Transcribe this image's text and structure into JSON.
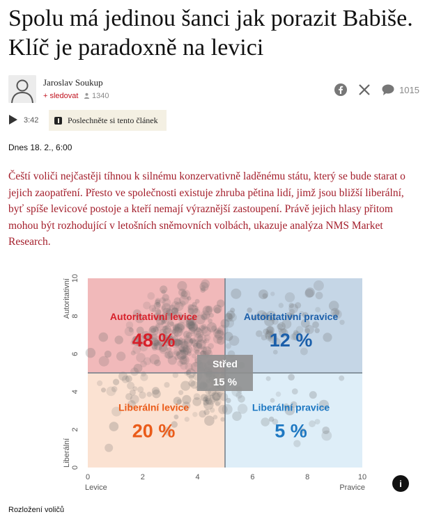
{
  "article": {
    "title": "Spolu má jedinou šanci jak porazit Babiše. Klíč je paradoxně na levici",
    "author": "Jaroslav Soukup",
    "follow_label": "+ sledovat",
    "followers": "1340",
    "comments_count": "1015",
    "audio_duration": "3:42",
    "listen_label": "Poslechněte si tento článek",
    "date": "Dnes 18. 2., 6:00",
    "perex": "Čeští voliči nejčastěji tíhnou k silnému konzervativně laděnému státu, který se bude starat o jejich zaopatření. Přesto ve společnosti existuje zhruba pětina lidí, jimž jsou bližší liberální, byť spíše levicové postoje a kteří nemají výraznější zastoupení. Právě jejich hlasy přitom mohou být rozhodující v letošních sněmovních volbách, ukazuje analýza NMS Market Research.",
    "info_label": "i",
    "caption": "Rozložení voličů"
  },
  "icons": {
    "avatar": "user-silhouette-icon",
    "facebook": "facebook-icon",
    "x": "x-icon",
    "comments": "comment-icon",
    "play": "play-icon",
    "info": "info-icon"
  },
  "chart_data": {
    "type": "scatter",
    "xlabel_left": "Levice",
    "xlabel_right": "Pravice",
    "ylabel_top": "Autoritativní",
    "ylabel_bottom": "Liberální",
    "xlim": [
      0,
      10
    ],
    "ylim": [
      0,
      10
    ],
    "x_ticks": [
      "0",
      "2",
      "4",
      "6",
      "8",
      "10"
    ],
    "y_ticks": [
      "0",
      "2",
      "4",
      "6",
      "8",
      "10"
    ],
    "midpoint": 5,
    "quadrants": [
      {
        "label": "Autoritativní levice",
        "value": "48 %",
        "color": "#d7202a",
        "fill": "#f1b9ba"
      },
      {
        "label": "Autoritativní pravice",
        "value": "12 %",
        "color": "#1b5faa",
        "fill": "#c5d6e6"
      },
      {
        "label": "Liberální levice",
        "value": "20 %",
        "color": "#ea5b19",
        "fill": "#fbe2d2"
      },
      {
        "label": "Liberální pravice",
        "value": "5 %",
        "color": "#1e78c2",
        "fill": "#deeef8"
      }
    ],
    "center": {
      "label": "Střed",
      "value": "15 %",
      "color": "#ffffff",
      "fill": "#8f8f8f"
    }
  }
}
